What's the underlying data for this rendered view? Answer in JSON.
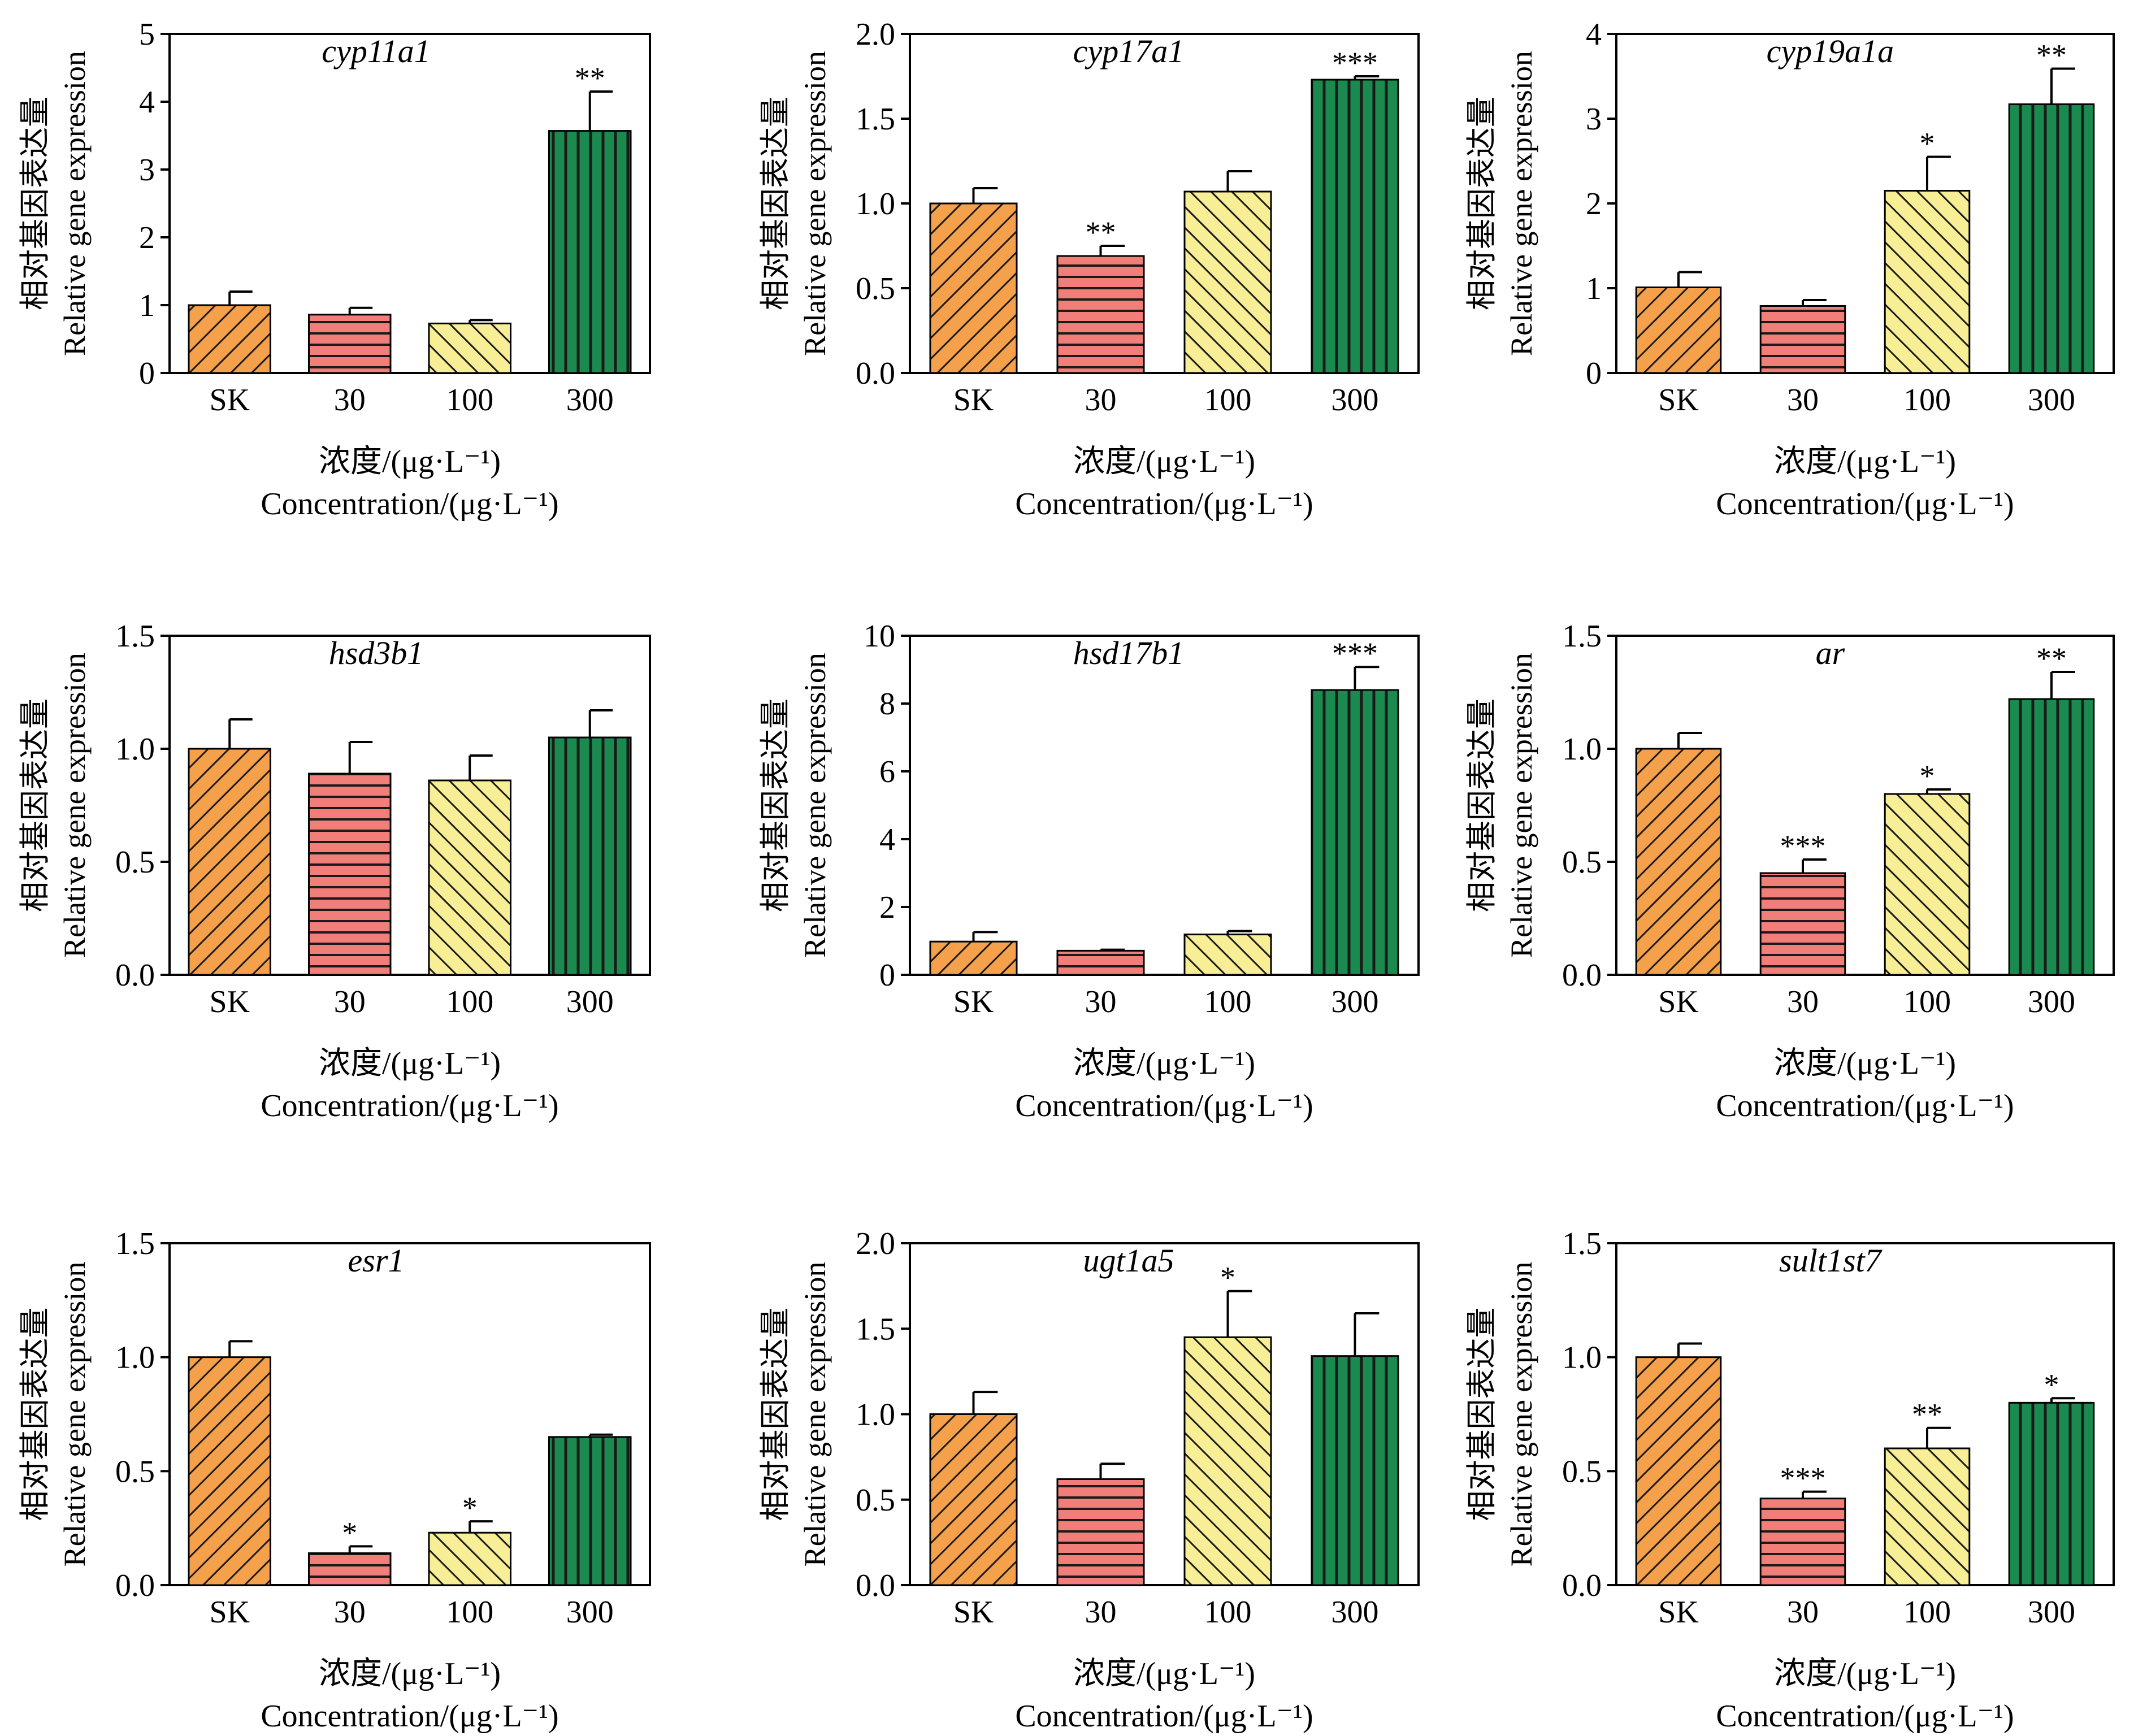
{
  "figure": {
    "x_label_cn": "浓度/(μg·L⁻¹)",
    "x_label_en": "Concentration/(μg·L⁻¹)",
    "y_label_cn": "相对基因表达量",
    "y_label_en": "Relative gene expression",
    "group_colors": [
      "#F5A04A",
      "#F27E79",
      "#F8EE95",
      "#1A8A4E"
    ],
    "group_patterns": [
      "diagonal-down",
      "horizontal",
      "diagonal-up",
      "vertical"
    ]
  },
  "chart_data": [
    {
      "type": "bar",
      "title": "cyp11a1",
      "categories": [
        "SK",
        "30",
        "100",
        "300"
      ],
      "values": [
        1.0,
        0.86,
        0.73,
        3.57
      ],
      "errors": [
        0.2,
        0.1,
        0.05,
        0.58
      ],
      "significance": [
        "",
        "",
        "",
        "**"
      ],
      "ylim": [
        0,
        5
      ],
      "yticks": [
        "0",
        "1",
        "2",
        "3",
        "4",
        "5"
      ]
    },
    {
      "type": "bar",
      "title": "cyp17a1",
      "categories": [
        "SK",
        "30",
        "100",
        "300"
      ],
      "values": [
        1.0,
        0.69,
        1.07,
        1.73
      ],
      "errors": [
        0.09,
        0.06,
        0.12,
        0.02
      ],
      "significance": [
        "",
        "**",
        "",
        "***"
      ],
      "ylim": [
        0,
        2
      ],
      "yticks": [
        "0.0",
        "0.5",
        "1.0",
        "1.5",
        "2.0"
      ]
    },
    {
      "type": "bar",
      "title": "cyp19a1a",
      "categories": [
        "SK",
        "30",
        "100",
        "300"
      ],
      "values": [
        1.01,
        0.79,
        2.15,
        3.17
      ],
      "errors": [
        0.18,
        0.07,
        0.4,
        0.42
      ],
      "significance": [
        "",
        "",
        "*",
        "**"
      ],
      "ylim": [
        0,
        4
      ],
      "yticks": [
        "0",
        "1",
        "2",
        "3",
        "4"
      ]
    },
    {
      "type": "bar",
      "title": "hsd3b1",
      "categories": [
        "SK",
        "30",
        "100",
        "300"
      ],
      "values": [
        1.0,
        0.89,
        0.86,
        1.05
      ],
      "errors": [
        0.13,
        0.14,
        0.11,
        0.12
      ],
      "significance": [
        "",
        "",
        "",
        ""
      ],
      "ylim": [
        0,
        1.5
      ],
      "yticks": [
        "0.0",
        "0.5",
        "1.0",
        "1.5"
      ]
    },
    {
      "type": "bar",
      "title": "hsd17b1",
      "categories": [
        "SK",
        "30",
        "100",
        "300"
      ],
      "values": [
        0.98,
        0.71,
        1.19,
        8.4
      ],
      "errors": [
        0.28,
        0.03,
        0.1,
        0.68
      ],
      "significance": [
        "",
        "",
        "",
        "***"
      ],
      "ylim": [
        0,
        10
      ],
      "yticks": [
        "0",
        "2",
        "4",
        "6",
        "8",
        "10"
      ]
    },
    {
      "type": "bar",
      "title": "ar",
      "categories": [
        "SK",
        "30",
        "100",
        "300"
      ],
      "values": [
        1.0,
        0.45,
        0.8,
        1.22
      ],
      "errors": [
        0.07,
        0.06,
        0.02,
        0.12
      ],
      "significance": [
        "",
        "***",
        "*",
        "**"
      ],
      "ylim": [
        0,
        1.5
      ],
      "yticks": [
        "0.0",
        "0.5",
        "1.0",
        "1.5"
      ]
    },
    {
      "type": "bar",
      "title": "esr1",
      "categories": [
        "SK",
        "30",
        "100",
        "300"
      ],
      "values": [
        1.0,
        0.14,
        0.23,
        0.65
      ],
      "errors": [
        0.07,
        0.03,
        0.05,
        0.01
      ],
      "significance": [
        "",
        "*",
        "*",
        ""
      ],
      "ylim": [
        0,
        1.5
      ],
      "yticks": [
        "0.0",
        "0.5",
        "1.0",
        "1.5"
      ]
    },
    {
      "type": "bar",
      "title": "ugt1a5",
      "categories": [
        "SK",
        "30",
        "100",
        "300"
      ],
      "values": [
        1.0,
        0.62,
        1.45,
        1.34
      ],
      "errors": [
        0.13,
        0.09,
        0.27,
        0.25
      ],
      "significance": [
        "",
        "",
        "*",
        ""
      ],
      "ylim": [
        0,
        2
      ],
      "yticks": [
        "0.0",
        "0.5",
        "1.0",
        "1.5",
        "2.0"
      ]
    },
    {
      "type": "bar",
      "title": "sult1st7",
      "categories": [
        "SK",
        "30",
        "100",
        "300"
      ],
      "values": [
        1.0,
        0.38,
        0.6,
        0.8
      ],
      "errors": [
        0.06,
        0.03,
        0.09,
        0.02
      ],
      "significance": [
        "",
        "***",
        "**",
        "*"
      ],
      "ylim": [
        0,
        1.5
      ],
      "yticks": [
        "0.0",
        "0.5",
        "1.0",
        "1.5"
      ]
    }
  ]
}
